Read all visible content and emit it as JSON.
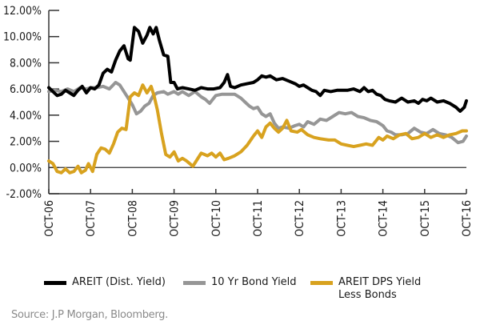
{
  "chart_data": {
    "type": "line",
    "title": "",
    "xlabel": "",
    "ylabel": "",
    "ylim": [
      -2,
      12
    ],
    "xlim": [
      0,
      10
    ],
    "grid": false,
    "legend_position": "bottom",
    "y_ticks": [
      "-2.00%",
      "0.00%",
      "2.00%",
      "4.00%",
      "6.00%",
      "8.00%",
      "10.00%",
      "12.00%"
    ],
    "y_tick_values": [
      -2,
      0,
      2,
      4,
      6,
      8,
      10,
      12
    ],
    "x_ticks": [
      "OCT-06",
      "OCT-07",
      "OCT-08",
      "OCT-09",
      "OCT-10",
      "OCT-11",
      "OCT-12",
      "OCT-13",
      "OCT-14",
      "OCT-15",
      "OCT-16"
    ],
    "x_tick_values": [
      0,
      1,
      2,
      3,
      4,
      5,
      6,
      7,
      8,
      9,
      10
    ],
    "series": [
      {
        "name": "AREIT (Dist. Yield)",
        "color": "#000000",
        "points": [
          [
            0,
            6.1
          ],
          [
            0.1,
            5.8
          ],
          [
            0.2,
            5.5
          ],
          [
            0.3,
            5.6
          ],
          [
            0.4,
            5.9
          ],
          [
            0.5,
            5.7
          ],
          [
            0.6,
            5.5
          ],
          [
            0.7,
            5.9
          ],
          [
            0.8,
            6.2
          ],
          [
            0.9,
            5.7
          ],
          [
            1.0,
            6.1
          ],
          [
            1.1,
            6.0
          ],
          [
            1.2,
            6.3
          ],
          [
            1.3,
            7.2
          ],
          [
            1.4,
            7.5
          ],
          [
            1.5,
            7.3
          ],
          [
            1.6,
            8.2
          ],
          [
            1.7,
            8.9
          ],
          [
            1.8,
            9.3
          ],
          [
            1.9,
            8.3
          ],
          [
            1.95,
            8.2
          ],
          [
            2.05,
            10.7
          ],
          [
            2.15,
            10.4
          ],
          [
            2.25,
            9.5
          ],
          [
            2.35,
            10.1
          ],
          [
            2.42,
            10.7
          ],
          [
            2.5,
            10.2
          ],
          [
            2.57,
            10.7
          ],
          [
            2.65,
            9.7
          ],
          [
            2.75,
            8.6
          ],
          [
            2.85,
            8.5
          ],
          [
            2.92,
            6.5
          ],
          [
            3.0,
            6.5
          ],
          [
            3.08,
            6.0
          ],
          [
            3.2,
            6.1
          ],
          [
            3.35,
            6.0
          ],
          [
            3.5,
            5.9
          ],
          [
            3.65,
            6.1
          ],
          [
            3.8,
            6.0
          ],
          [
            3.95,
            6.0
          ],
          [
            4.1,
            6.1
          ],
          [
            4.2,
            6.5
          ],
          [
            4.28,
            7.1
          ],
          [
            4.35,
            6.2
          ],
          [
            4.45,
            6.1
          ],
          [
            4.6,
            6.3
          ],
          [
            4.75,
            6.4
          ],
          [
            4.9,
            6.5
          ],
          [
            5.0,
            6.7
          ],
          [
            5.1,
            7.0
          ],
          [
            5.2,
            6.9
          ],
          [
            5.3,
            7.0
          ],
          [
            5.45,
            6.7
          ],
          [
            5.6,
            6.8
          ],
          [
            5.75,
            6.6
          ],
          [
            5.9,
            6.4
          ],
          [
            6.0,
            6.2
          ],
          [
            6.1,
            6.3
          ],
          [
            6.2,
            6.1
          ],
          [
            6.3,
            5.9
          ],
          [
            6.4,
            5.8
          ],
          [
            6.5,
            5.5
          ],
          [
            6.6,
            5.9
          ],
          [
            6.75,
            5.8
          ],
          [
            6.9,
            5.9
          ],
          [
            7.0,
            5.9
          ],
          [
            7.15,
            5.9
          ],
          [
            7.3,
            6.0
          ],
          [
            7.45,
            5.8
          ],
          [
            7.55,
            6.1
          ],
          [
            7.65,
            5.8
          ],
          [
            7.75,
            5.9
          ],
          [
            7.85,
            5.6
          ],
          [
            7.95,
            5.5
          ],
          [
            8.05,
            5.2
          ],
          [
            8.15,
            5.1
          ],
          [
            8.3,
            5.0
          ],
          [
            8.45,
            5.3
          ],
          [
            8.6,
            5.0
          ],
          [
            8.75,
            5.1
          ],
          [
            8.85,
            4.9
          ],
          [
            8.95,
            5.2
          ],
          [
            9.05,
            5.1
          ],
          [
            9.15,
            5.3
          ],
          [
            9.3,
            5.0
          ],
          [
            9.45,
            5.1
          ],
          [
            9.6,
            4.9
          ],
          [
            9.75,
            4.6
          ],
          [
            9.85,
            4.3
          ],
          [
            9.95,
            4.6
          ],
          [
            10.0,
            5.1
          ]
        ]
      },
      {
        "name": "10 Yr Bond Yield",
        "color": "#969696",
        "points": [
          [
            0,
            5.8
          ],
          [
            0.15,
            5.9
          ],
          [
            0.3,
            5.8
          ],
          [
            0.45,
            6.0
          ],
          [
            0.6,
            5.8
          ],
          [
            0.75,
            6.1
          ],
          [
            0.9,
            6.0
          ],
          [
            1.0,
            6.1
          ],
          [
            1.15,
            6.1
          ],
          [
            1.3,
            6.2
          ],
          [
            1.45,
            6.0
          ],
          [
            1.6,
            6.5
          ],
          [
            1.7,
            6.3
          ],
          [
            1.8,
            5.8
          ],
          [
            1.9,
            5.3
          ],
          [
            2.0,
            4.8
          ],
          [
            2.1,
            4.1
          ],
          [
            2.2,
            4.3
          ],
          [
            2.3,
            4.7
          ],
          [
            2.4,
            4.9
          ],
          [
            2.5,
            5.5
          ],
          [
            2.6,
            5.7
          ],
          [
            2.75,
            5.8
          ],
          [
            2.85,
            5.6
          ],
          [
            3.0,
            5.8
          ],
          [
            3.1,
            5.6
          ],
          [
            3.2,
            5.8
          ],
          [
            3.35,
            5.5
          ],
          [
            3.5,
            5.8
          ],
          [
            3.65,
            5.4
          ],
          [
            3.75,
            5.2
          ],
          [
            3.85,
            4.9
          ],
          [
            4.0,
            5.5
          ],
          [
            4.15,
            5.6
          ],
          [
            4.3,
            5.6
          ],
          [
            4.45,
            5.6
          ],
          [
            4.6,
            5.3
          ],
          [
            4.7,
            5.0
          ],
          [
            4.8,
            4.7
          ],
          [
            4.9,
            4.5
          ],
          [
            5.0,
            4.6
          ],
          [
            5.1,
            4.1
          ],
          [
            5.2,
            3.9
          ],
          [
            5.3,
            4.1
          ],
          [
            5.4,
            3.4
          ],
          [
            5.5,
            3.0
          ],
          [
            5.6,
            3.1
          ],
          [
            5.75,
            3.0
          ],
          [
            5.9,
            3.2
          ],
          [
            6.0,
            3.3
          ],
          [
            6.1,
            3.1
          ],
          [
            6.2,
            3.5
          ],
          [
            6.35,
            3.3
          ],
          [
            6.5,
            3.7
          ],
          [
            6.65,
            3.6
          ],
          [
            6.8,
            3.9
          ],
          [
            6.95,
            4.2
          ],
          [
            7.1,
            4.1
          ],
          [
            7.25,
            4.2
          ],
          [
            7.4,
            3.9
          ],
          [
            7.55,
            3.8
          ],
          [
            7.7,
            3.6
          ],
          [
            7.85,
            3.5
          ],
          [
            8.0,
            3.2
          ],
          [
            8.1,
            2.8
          ],
          [
            8.2,
            2.7
          ],
          [
            8.3,
            2.5
          ],
          [
            8.45,
            2.5
          ],
          [
            8.6,
            2.6
          ],
          [
            8.75,
            3.0
          ],
          [
            8.9,
            2.7
          ],
          [
            9.05,
            2.6
          ],
          [
            9.2,
            2.9
          ],
          [
            9.35,
            2.6
          ],
          [
            9.5,
            2.5
          ],
          [
            9.65,
            2.3
          ],
          [
            9.8,
            1.9
          ],
          [
            9.92,
            2.0
          ],
          [
            10.0,
            2.4
          ]
        ]
      },
      {
        "name": "AREIT DPS Yield Less Bonds",
        "color": "#d8a21f",
        "points": [
          [
            0,
            0.5
          ],
          [
            0.1,
            0.3
          ],
          [
            0.2,
            -0.3
          ],
          [
            0.3,
            -0.4
          ],
          [
            0.4,
            -0.1
          ],
          [
            0.5,
            -0.4
          ],
          [
            0.6,
            -0.3
          ],
          [
            0.7,
            0.1
          ],
          [
            0.78,
            -0.4
          ],
          [
            0.88,
            -0.2
          ],
          [
            0.95,
            0.3
          ],
          [
            1.05,
            -0.3
          ],
          [
            1.15,
            1.0
          ],
          [
            1.25,
            1.5
          ],
          [
            1.35,
            1.4
          ],
          [
            1.45,
            1.1
          ],
          [
            1.55,
            1.8
          ],
          [
            1.65,
            2.7
          ],
          [
            1.75,
            3.0
          ],
          [
            1.85,
            2.9
          ],
          [
            1.95,
            5.4
          ],
          [
            2.05,
            5.7
          ],
          [
            2.15,
            5.5
          ],
          [
            2.25,
            6.3
          ],
          [
            2.35,
            5.7
          ],
          [
            2.45,
            6.2
          ],
          [
            2.52,
            5.5
          ],
          [
            2.6,
            4.4
          ],
          [
            2.7,
            2.6
          ],
          [
            2.8,
            1.0
          ],
          [
            2.9,
            0.8
          ],
          [
            3.0,
            1.2
          ],
          [
            3.1,
            0.5
          ],
          [
            3.2,
            0.7
          ],
          [
            3.3,
            0.5
          ],
          [
            3.45,
            0.1
          ],
          [
            3.55,
            0.6
          ],
          [
            3.65,
            1.1
          ],
          [
            3.8,
            0.9
          ],
          [
            3.9,
            1.1
          ],
          [
            4.0,
            0.8
          ],
          [
            4.1,
            1.1
          ],
          [
            4.2,
            0.6
          ],
          [
            4.3,
            0.7
          ],
          [
            4.45,
            0.9
          ],
          [
            4.6,
            1.2
          ],
          [
            4.75,
            1.7
          ],
          [
            4.9,
            2.4
          ],
          [
            5.0,
            2.8
          ],
          [
            5.1,
            2.3
          ],
          [
            5.2,
            3.1
          ],
          [
            5.3,
            3.4
          ],
          [
            5.4,
            3.0
          ],
          [
            5.5,
            2.7
          ],
          [
            5.6,
            3.0
          ],
          [
            5.7,
            3.6
          ],
          [
            5.8,
            2.8
          ],
          [
            5.95,
            2.7
          ],
          [
            6.05,
            2.9
          ],
          [
            6.2,
            2.5
          ],
          [
            6.35,
            2.3
          ],
          [
            6.5,
            2.2
          ],
          [
            6.7,
            2.1
          ],
          [
            6.85,
            2.1
          ],
          [
            7.0,
            1.8
          ],
          [
            7.15,
            1.7
          ],
          [
            7.3,
            1.6
          ],
          [
            7.45,
            1.7
          ],
          [
            7.6,
            1.8
          ],
          [
            7.75,
            1.7
          ],
          [
            7.9,
            2.3
          ],
          [
            8.0,
            2.1
          ],
          [
            8.1,
            2.4
          ],
          [
            8.25,
            2.2
          ],
          [
            8.4,
            2.5
          ],
          [
            8.55,
            2.6
          ],
          [
            8.7,
            2.2
          ],
          [
            8.85,
            2.3
          ],
          [
            9.0,
            2.6
          ],
          [
            9.15,
            2.3
          ],
          [
            9.3,
            2.5
          ],
          [
            9.45,
            2.3
          ],
          [
            9.6,
            2.5
          ],
          [
            9.75,
            2.6
          ],
          [
            9.9,
            2.8
          ],
          [
            10.0,
            2.8
          ]
        ]
      }
    ]
  },
  "legend": {
    "items": [
      {
        "label": "AREIT (Dist. Yield)",
        "color": "#000000"
      },
      {
        "label": "10 Yr Bond Yield",
        "color": "#969696"
      },
      {
        "label": "AREIT DPS Yield Less Bonds",
        "label_line1": "AREIT DPS Yield",
        "label_line2": "Less Bonds",
        "color": "#d8a21f"
      }
    ]
  },
  "source": "Source: J.P Morgan, Bloomberg."
}
